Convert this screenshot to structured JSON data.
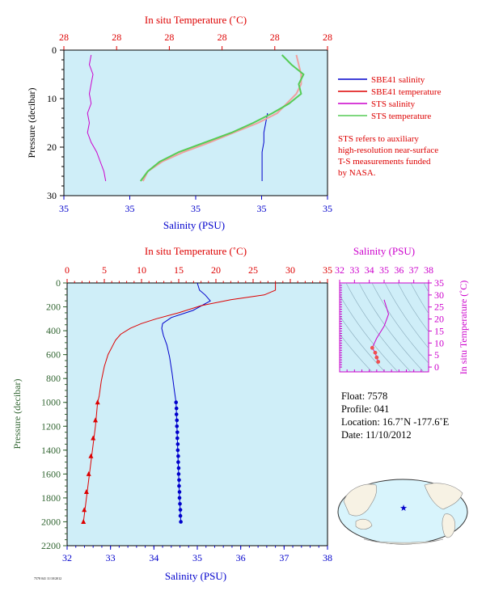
{
  "colors": {
    "panel_bg": "#cfeef8",
    "red": "#dd0000",
    "blue": "#0000cc",
    "magenta": "#cc00cc",
    "green_axis": "#336633",
    "sts_temp": "#55cc55",
    "sbe_temp_light": "#f0a0a0"
  },
  "top_panel": {
    "title": "In situ Temperature (˚C)",
    "x_top_ticks": [
      "28",
      "28",
      "28",
      "28",
      "28",
      "28"
    ],
    "x_bottom_ticks": [
      "35",
      "35",
      "35",
      "35",
      "35"
    ],
    "x_bottom_label": "Salinity (PSU)",
    "y_label": "Pressure (decibar)",
    "y_ticks": [
      "0",
      "10",
      "20",
      "30"
    ]
  },
  "legend": {
    "items": [
      {
        "label": "SBE41 salinity",
        "color": "#0000cc"
      },
      {
        "label": "SBE41 temperature",
        "color": "#dd0000"
      },
      {
        "label": "STS salinity",
        "color": "#cc00cc"
      },
      {
        "label": "STS temperature",
        "color": "#55cc55"
      }
    ],
    "note_lines": [
      "STS refers to auxiliary",
      "high-resolution near-surface",
      "T-S measurements funded",
      "by NASA."
    ]
  },
  "main_panel": {
    "title": "In situ Temperature (˚C)",
    "x_top_ticks": [
      "0",
      "5",
      "10",
      "15",
      "20",
      "25",
      "30",
      "35"
    ],
    "x_bottom_ticks": [
      "32",
      "33",
      "34",
      "35",
      "36",
      "37",
      "38"
    ],
    "x_bottom_label": "Salinity (PSU)",
    "y_label": "Pressure (decibar)",
    "y_ticks": [
      "0",
      "200",
      "400",
      "600",
      "800",
      "1000",
      "1200",
      "1400",
      "1600",
      "1800",
      "2000",
      "2200"
    ]
  },
  "ts_panel": {
    "title": "Salinity (PSU)",
    "x_ticks": [
      "32",
      "33",
      "34",
      "35",
      "36",
      "37",
      "38"
    ],
    "y_ticks": [
      "0",
      "5",
      "10",
      "15",
      "20",
      "25",
      "30",
      "35"
    ],
    "y_label": "In situ Temperature (˚C)"
  },
  "float_info": {
    "float": "Float:  7578",
    "profile": "Profile:  041",
    "location": "Location:  16.7˚N  -177.6˚E",
    "date": "Date:  11/10/2012"
  },
  "footer_text": "7578 041 11/10/2012",
  "chart_data": [
    {
      "type": "line",
      "title": "In situ Temperature (˚C)",
      "xlabel": "Salinity (PSU)",
      "ylabel": "Pressure (decibar)",
      "ylim": [
        30,
        0
      ],
      "series": [
        {
          "name": "SBE41 salinity",
          "axis": "salinity",
          "points": [
            [
              35.02,
              13
            ],
            [
              35.01,
              15
            ],
            [
              35.0,
              17
            ],
            [
              35.0,
              19
            ],
            [
              34.99,
              21
            ],
            [
              34.99,
              23
            ],
            [
              34.99,
              25
            ],
            [
              34.99,
              27
            ]
          ]
        },
        {
          "name": "SBE41 temperature",
          "axis": "temperature",
          "points": [
            [
              28.82,
              1
            ],
            [
              28.83,
              3
            ],
            [
              28.84,
              5
            ],
            [
              28.84,
              7
            ],
            [
              28.82,
              9
            ],
            [
              28.78,
              11
            ],
            [
              28.74,
              13
            ],
            [
              28.66,
              15
            ],
            [
              28.56,
              17
            ],
            [
              28.46,
              19
            ],
            [
              28.35,
              21
            ],
            [
              28.26,
              23
            ],
            [
              28.2,
              25
            ],
            [
              28.18,
              27
            ]
          ]
        },
        {
          "name": "STS salinity",
          "axis": "salinity",
          "points": [
            [
              34.05,
              1
            ],
            [
              34.04,
              3
            ],
            [
              34.06,
              5
            ],
            [
              34.05,
              7
            ],
            [
              34.04,
              9
            ],
            [
              34.05,
              11
            ],
            [
              34.03,
              13
            ],
            [
              34.04,
              15
            ],
            [
              34.03,
              17
            ],
            [
              34.05,
              19
            ],
            [
              34.08,
              21
            ],
            [
              34.1,
              23
            ],
            [
              34.12,
              25
            ],
            [
              34.13,
              27
            ]
          ]
        },
        {
          "name": "STS temperature",
          "axis": "temperature",
          "points": [
            [
              28.76,
              1
            ],
            [
              28.8,
              3
            ],
            [
              28.85,
              5
            ],
            [
              28.83,
              7
            ],
            [
              28.84,
              9
            ],
            [
              28.79,
              11
            ],
            [
              28.72,
              13
            ],
            [
              28.64,
              15
            ],
            [
              28.55,
              17
            ],
            [
              28.44,
              19
            ],
            [
              28.33,
              21
            ],
            [
              28.25,
              23
            ],
            [
              28.2,
              25
            ],
            [
              28.17,
              27
            ]
          ]
        }
      ]
    },
    {
      "type": "line",
      "title": "In situ Temperature (˚C)",
      "xlabel": "Salinity (PSU)",
      "ylabel": "Pressure (decibar)",
      "xlim_salinity": [
        32,
        38
      ],
      "xlim_temperature": [
        0,
        35
      ],
      "ylim": [
        2200,
        0
      ],
      "series": [
        {
          "name": "Salinity",
          "axis": "salinity",
          "points": [
            [
              35.0,
              0
            ],
            [
              35.05,
              60
            ],
            [
              35.18,
              100
            ],
            [
              35.3,
              150
            ],
            [
              34.9,
              230
            ],
            [
              34.4,
              290
            ],
            [
              34.2,
              340
            ],
            [
              34.18,
              380
            ],
            [
              34.22,
              440
            ],
            [
              34.3,
              520
            ],
            [
              34.36,
              620
            ],
            [
              34.42,
              760
            ],
            [
              34.47,
              900
            ],
            [
              34.51,
              1000
            ],
            [
              34.53,
              1200
            ],
            [
              34.55,
              1400
            ],
            [
              34.57,
              1600
            ],
            [
              34.59,
              1800
            ],
            [
              34.62,
              2000
            ]
          ],
          "markers": [
            [
              34.51,
              1000
            ],
            [
              34.52,
              1050
            ],
            [
              34.52,
              1100
            ],
            [
              34.53,
              1150
            ],
            [
              34.53,
              1200
            ],
            [
              34.54,
              1250
            ],
            [
              34.54,
              1300
            ],
            [
              34.55,
              1350
            ],
            [
              34.55,
              1400
            ],
            [
              34.56,
              1450
            ],
            [
              34.56,
              1500
            ],
            [
              34.57,
              1550
            ],
            [
              34.57,
              1600
            ],
            [
              34.58,
              1650
            ],
            [
              34.58,
              1700
            ],
            [
              34.59,
              1750
            ],
            [
              34.59,
              1800
            ],
            [
              34.6,
              1850
            ],
            [
              34.61,
              1900
            ],
            [
              34.61,
              1950
            ],
            [
              34.62,
              2000
            ]
          ]
        },
        {
          "name": "Temperature",
          "axis": "temperature",
          "points": [
            [
              28.0,
              0
            ],
            [
              28.0,
              60
            ],
            [
              26.5,
              100
            ],
            [
              22.0,
              140
            ],
            [
              18.0,
              190
            ],
            [
              15.0,
              250
            ],
            [
              12.0,
              300
            ],
            [
              10.0,
              340
            ],
            [
              8.5,
              380
            ],
            [
              7.2,
              430
            ],
            [
              6.5,
              480
            ],
            [
              6.0,
              540
            ],
            [
              5.5,
              600
            ],
            [
              5.0,
              700
            ],
            [
              4.6,
              820
            ],
            [
              4.3,
              950
            ],
            [
              4.1,
              1000
            ],
            [
              3.8,
              1200
            ],
            [
              3.4,
              1400
            ],
            [
              3.0,
              1600
            ],
            [
              2.6,
              1800
            ],
            [
              2.2,
              2000
            ]
          ],
          "markers": [
            [
              4.1,
              1000
            ],
            [
              3.8,
              1150
            ],
            [
              3.5,
              1300
            ],
            [
              3.2,
              1450
            ],
            [
              2.9,
              1600
            ],
            [
              2.6,
              1750
            ],
            [
              2.3,
              1900
            ],
            [
              2.2,
              2000
            ]
          ]
        }
      ]
    },
    {
      "type": "line",
      "title": "Salinity (PSU)",
      "xlabel": "",
      "ylabel": "In situ Temperature (˚C)",
      "xlim": [
        32,
        38
      ],
      "ylim": [
        -2,
        35
      ],
      "series": [
        {
          "name": "T-S",
          "points": [
            [
              35.0,
              28
            ],
            [
              35.3,
              22
            ],
            [
              35.0,
              17
            ],
            [
              34.5,
              12
            ],
            [
              34.2,
              8
            ],
            [
              34.4,
              6
            ],
            [
              34.5,
              4
            ],
            [
              34.6,
              2.2
            ]
          ]
        }
      ]
    }
  ]
}
